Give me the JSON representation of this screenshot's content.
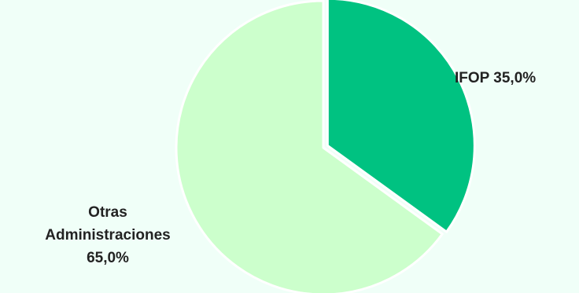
{
  "chart_data": {
    "type": "pie",
    "title": "",
    "slices": [
      {
        "label": "IFOP",
        "value": 35.0,
        "display": "35,0%",
        "color": "#00c281",
        "exploded": true
      },
      {
        "label_lines": [
          "Otras",
          "Administraciones"
        ],
        "label": "Otras Administraciones",
        "value": 65.0,
        "display": "65,0%",
        "color": "#ccffcc",
        "exploded": false
      }
    ],
    "start_angle_deg": 0,
    "direction": "clockwise",
    "legend": "none",
    "data_labels": "outside"
  }
}
